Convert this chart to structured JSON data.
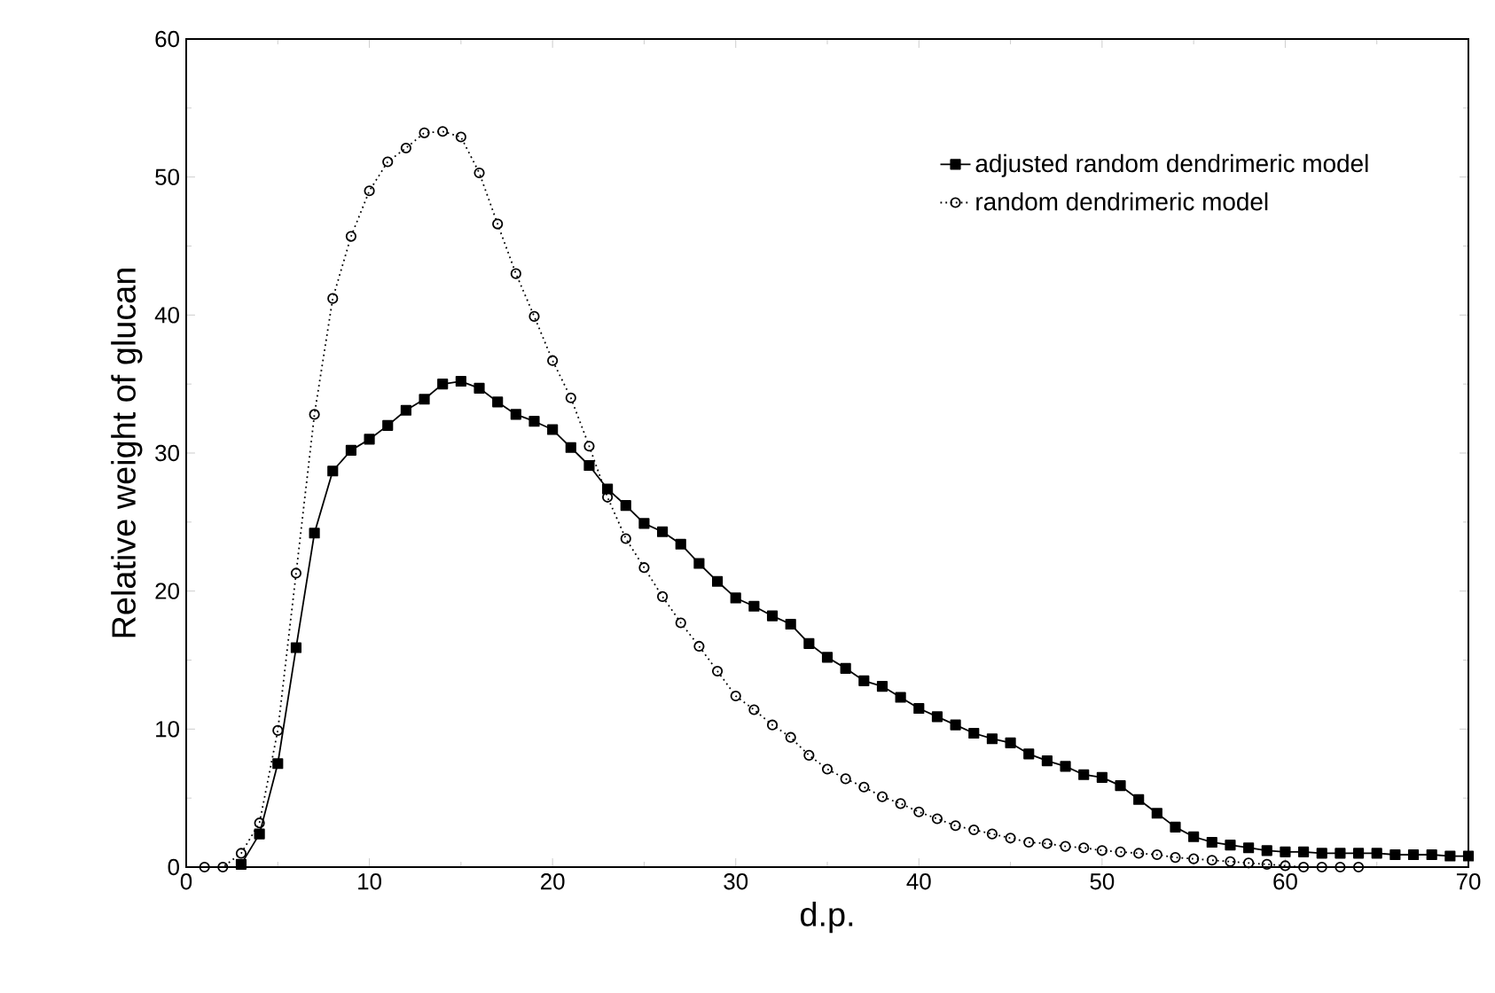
{
  "chart_data": {
    "type": "line",
    "xlabel": "d.p.",
    "ylabel": "Relative weight of glucan",
    "xlim": [
      0,
      70
    ],
    "ylim": [
      0,
      60
    ],
    "xticks": [
      0,
      10,
      20,
      30,
      40,
      50,
      60,
      70
    ],
    "yticks": [
      0,
      10,
      20,
      30,
      40,
      50,
      60
    ],
    "legend": "top right",
    "grid": false,
    "series": [
      {
        "name": "adjusted random dendrimeric model",
        "color": "#000000",
        "marker": "square",
        "line_style": "solid",
        "x": [
          3,
          4,
          5,
          6,
          7,
          8,
          9,
          10,
          11,
          12,
          13,
          14,
          15,
          16,
          17,
          18,
          19,
          20,
          21,
          22,
          23,
          24,
          25,
          26,
          27,
          28,
          29,
          30,
          31,
          32,
          33,
          34,
          35,
          36,
          37,
          38,
          39,
          40,
          41,
          42,
          43,
          44,
          45,
          46,
          47,
          48,
          49,
          50,
          51,
          52,
          53,
          54,
          55,
          56,
          57,
          58,
          59,
          60,
          61,
          62,
          63,
          64,
          65,
          66,
          67,
          68,
          69,
          70
        ],
        "values": [
          0.2,
          2.4,
          7.5,
          15.9,
          24.2,
          28.7,
          30.2,
          31.0,
          32.0,
          33.1,
          33.9,
          35.0,
          35.2,
          34.7,
          33.7,
          32.8,
          32.3,
          31.7,
          30.4,
          29.1,
          27.4,
          26.2,
          24.9,
          24.3,
          23.4,
          22.0,
          20.7,
          19.5,
          18.9,
          18.2,
          17.6,
          16.2,
          15.2,
          14.4,
          13.5,
          13.1,
          12.3,
          11.5,
          10.9,
          10.3,
          9.7,
          9.3,
          9.0,
          8.2,
          7.7,
          7.3,
          6.7,
          6.5,
          5.9,
          4.9,
          3.9,
          2.9,
          2.2,
          1.8,
          1.6,
          1.4,
          1.2,
          1.1,
          1.1,
          1.0,
          1.0,
          1.0,
          1.0,
          0.9,
          0.9,
          0.9,
          0.8,
          0.8
        ]
      },
      {
        "name": "random dendrimeric model",
        "color": "#000000",
        "marker": "circle",
        "line_style": "dotted",
        "x": [
          1,
          2,
          3,
          4,
          5,
          6,
          7,
          8,
          9,
          10,
          11,
          12,
          13,
          14,
          15,
          16,
          17,
          18,
          19,
          20,
          21,
          22,
          23,
          24,
          25,
          26,
          27,
          28,
          29,
          30,
          31,
          32,
          33,
          34,
          35,
          36,
          37,
          38,
          39,
          40,
          41,
          42,
          43,
          44,
          45,
          46,
          47,
          48,
          49,
          50,
          51,
          52,
          53,
          54,
          55,
          56,
          57,
          58,
          59,
          60,
          61,
          62,
          63,
          64
        ],
        "values": [
          0,
          0,
          1.0,
          3.2,
          9.9,
          21.3,
          32.8,
          41.2,
          45.7,
          49.0,
          51.1,
          52.1,
          53.2,
          53.3,
          52.9,
          50.3,
          46.6,
          43.0,
          39.9,
          36.7,
          34.0,
          30.5,
          26.8,
          23.8,
          21.7,
          19.6,
          17.7,
          16.0,
          14.2,
          12.4,
          11.4,
          10.3,
          9.4,
          8.1,
          7.1,
          6.4,
          5.8,
          5.1,
          4.6,
          4.0,
          3.5,
          3.0,
          2.7,
          2.4,
          2.1,
          1.8,
          1.7,
          1.5,
          1.4,
          1.2,
          1.1,
          1.0,
          0.9,
          0.7,
          0.6,
          0.5,
          0.4,
          0.3,
          0.2,
          0.1,
          0,
          0,
          0,
          0
        ]
      }
    ]
  }
}
